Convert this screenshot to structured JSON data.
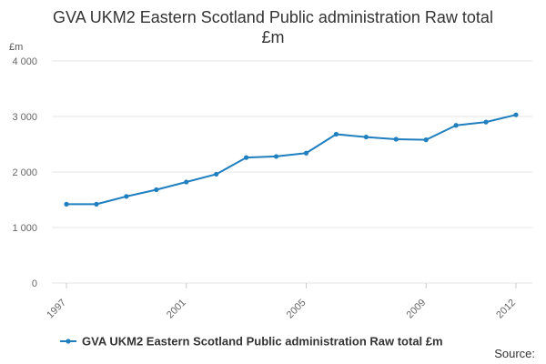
{
  "title_line1": "GVA UKM2 Eastern Scotland Public administration Raw total",
  "title_line2": "£m",
  "source_label": "Source:",
  "chart_data": {
    "type": "line",
    "title": "GVA UKM2 Eastern Scotland Public administration Raw total £m",
    "ylabel": "£m",
    "xlabel": "",
    "ylim": [
      0,
      4000
    ],
    "yticks": [
      0,
      1000,
      2000,
      3000,
      4000
    ],
    "ytick_labels": [
      "0",
      "1 000",
      "2 000",
      "3 000",
      "4 000"
    ],
    "xtick_labels": [
      "1997",
      "2001",
      "2005",
      "2009",
      "2012"
    ],
    "x": [
      1997,
      1998,
      1999,
      2000,
      2001,
      2002,
      2003,
      2004,
      2005,
      2006,
      2007,
      2008,
      2009,
      2010,
      2011,
      2012
    ],
    "series": [
      {
        "name": "GVA UKM2 Eastern Scotland Public administration Raw total £m",
        "color": "#1f7fbf",
        "values": [
          1420,
          1420,
          1560,
          1680,
          1820,
          1960,
          2260,
          2280,
          2340,
          2680,
          2630,
          2590,
          2580,
          2840,
          2900,
          3030
        ]
      }
    ],
    "grid": true,
    "legend_position": "bottom"
  }
}
